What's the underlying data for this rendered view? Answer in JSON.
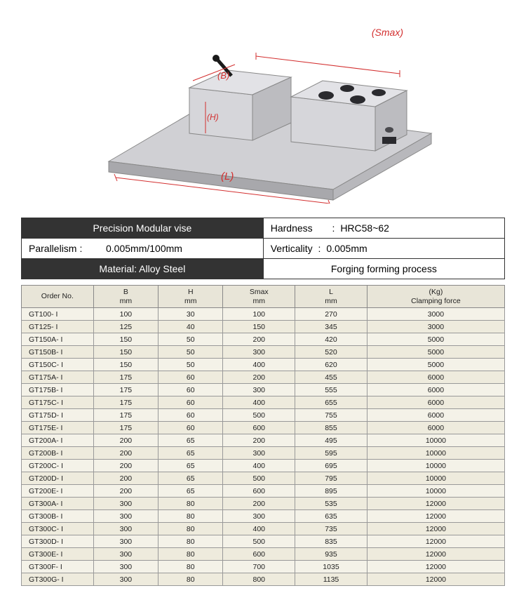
{
  "diagram": {
    "smax_label": "(Smax)",
    "b_label": "(B)",
    "h_label": "(H)",
    "l_label": "(L)",
    "colors": {
      "annotation": "#d32f2f",
      "vise_body": "#c8c8cc",
      "vise_edge": "#888890",
      "dark_hole": "#2a2a2e"
    }
  },
  "properties": {
    "title": "Precision Modular vise",
    "hardness_label": "Hardness",
    "hardness_value": "HRC58~62",
    "parallelism_label": "Parallelism",
    "parallelism_value": "0.005mm/100mm",
    "verticality_label": "Verticality",
    "verticality_value": "0.005mm",
    "material": "Material: Alloy Steel",
    "process": "Forging forming process",
    "colon": ":"
  },
  "spec": {
    "headers": {
      "order": "Order No.",
      "b": "B\nmm",
      "h": "H\nmm",
      "smax": "Smax\nmm",
      "l": "L\nmm",
      "force": "(Kg)\nClamping force"
    },
    "rows": [
      {
        "order": "GT100- I",
        "b": "100",
        "h": "30",
        "s": "100",
        "l": "270",
        "f": "3000"
      },
      {
        "order": "GT125- I",
        "b": "125",
        "h": "40",
        "s": "150",
        "l": "345",
        "f": "3000"
      },
      {
        "order": "GT150A- I",
        "b": "150",
        "h": "50",
        "s": "200",
        "l": "420",
        "f": "5000"
      },
      {
        "order": "GT150B- I",
        "b": "150",
        "h": "50",
        "s": "300",
        "l": "520",
        "f": "5000"
      },
      {
        "order": "GT150C- I",
        "b": "150",
        "h": "50",
        "s": "400",
        "l": "620",
        "f": "5000"
      },
      {
        "order": "GT175A- I",
        "b": "175",
        "h": "60",
        "s": "200",
        "l": "455",
        "f": "6000"
      },
      {
        "order": "GT175B- I",
        "b": "175",
        "h": "60",
        "s": "300",
        "l": "555",
        "f": "6000"
      },
      {
        "order": "GT175C- I",
        "b": "175",
        "h": "60",
        "s": "400",
        "l": "655",
        "f": "6000"
      },
      {
        "order": "GT175D- I",
        "b": "175",
        "h": "60",
        "s": "500",
        "l": "755",
        "f": "6000"
      },
      {
        "order": "GT175E- I",
        "b": "175",
        "h": "60",
        "s": "600",
        "l": "855",
        "f": "6000"
      },
      {
        "order": "GT200A- I",
        "b": "200",
        "h": "65",
        "s": "200",
        "l": "495",
        "f": "10000"
      },
      {
        "order": "GT200B- I",
        "b": "200",
        "h": "65",
        "s": "300",
        "l": "595",
        "f": "10000"
      },
      {
        "order": "GT200C- I",
        "b": "200",
        "h": "65",
        "s": "400",
        "l": "695",
        "f": "10000"
      },
      {
        "order": "GT200D- I",
        "b": "200",
        "h": "65",
        "s": "500",
        "l": "795",
        "f": "10000"
      },
      {
        "order": "GT200E- I",
        "b": "200",
        "h": "65",
        "s": "600",
        "l": "895",
        "f": "10000"
      },
      {
        "order": "GT300A- I",
        "b": "300",
        "h": "80",
        "s": "200",
        "l": "535",
        "f": "12000"
      },
      {
        "order": "GT300B- I",
        "b": "300",
        "h": "80",
        "s": "300",
        "l": "635",
        "f": "12000"
      },
      {
        "order": "GT300C- I",
        "b": "300",
        "h": "80",
        "s": "400",
        "l": "735",
        "f": "12000"
      },
      {
        "order": "GT300D- I",
        "b": "300",
        "h": "80",
        "s": "500",
        "l": "835",
        "f": "12000"
      },
      {
        "order": "GT300E- I",
        "b": "300",
        "h": "80",
        "s": "600",
        "l": "935",
        "f": "12000"
      },
      {
        "order": "GT300F- I",
        "b": "300",
        "h": "80",
        "s": "700",
        "l": "1035",
        "f": "12000"
      },
      {
        "order": "GT300G- I",
        "b": "300",
        "h": "80",
        "s": "800",
        "l": "1135",
        "f": "12000"
      }
    ]
  }
}
